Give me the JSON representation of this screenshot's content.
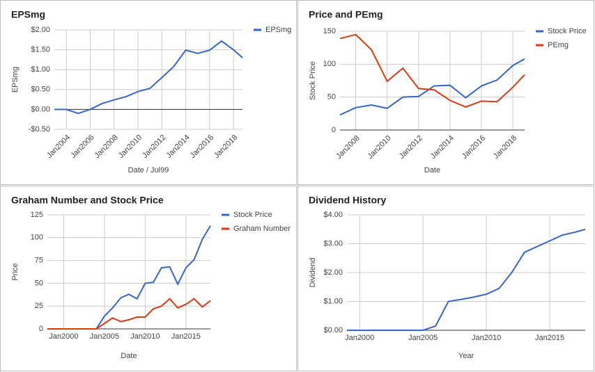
{
  "chart_data": [
    {
      "type": "line",
      "title": "EPSmg",
      "x_label": "Date / Jul99",
      "y_label": "EPSmg",
      "x": [
        2003,
        2004,
        2005,
        2006,
        2007,
        2008,
        2009,
        2010,
        2011,
        2012,
        2013,
        2014,
        2015,
        2016,
        2017,
        2018,
        2018.75
      ],
      "series": [
        {
          "name": "EPSmg",
          "color": "#3366cc",
          "values": [
            0,
            0,
            -0.1,
            0,
            0.15,
            0.24,
            0.32,
            0.45,
            0.53,
            0.8,
            1.08,
            1.49,
            1.41,
            1.49,
            1.72,
            1.5,
            1.3
          ]
        }
      ],
      "xlim": [
        2003,
        2018.75
      ],
      "ylim": [
        -0.5,
        2
      ],
      "xticks": [
        {
          "value": 2004,
          "label": "Jan2004"
        },
        {
          "value": 2006,
          "label": "Jan2006"
        },
        {
          "value": 2008,
          "label": "Jan2008"
        },
        {
          "value": 2010,
          "label": "Jan2010"
        },
        {
          "value": 2012,
          "label": "Jan2012"
        },
        {
          "value": 2014,
          "label": "Jan2014"
        },
        {
          "value": 2016,
          "label": "Jan2016"
        },
        {
          "value": 2018,
          "label": "Jan2018"
        }
      ],
      "yticks": [
        {
          "value": -0.5,
          "label": "-$0.50"
        },
        {
          "value": 0,
          "label": "$0.00"
        },
        {
          "value": 0.5,
          "label": "$0.50"
        },
        {
          "value": 1,
          "label": "$1.00"
        },
        {
          "value": 1.5,
          "label": "$1.50"
        },
        {
          "value": 2,
          "label": "$2.00"
        }
      ],
      "grid": true,
      "legend": "right"
    },
    {
      "type": "line",
      "title": "Price and PEmg",
      "x_label": "Date",
      "y_label": "Stock Price",
      "x": [
        2007,
        2008,
        2009,
        2010,
        2011,
        2012,
        2013,
        2014,
        2015,
        2016,
        2017,
        2018,
        2018.75
      ],
      "series": [
        {
          "name": "Stock Price",
          "color": "#3366cc",
          "values": [
            23,
            34,
            38,
            33,
            50,
            51,
            67,
            68,
            49,
            67,
            76,
            98,
            108
          ]
        },
        {
          "name": "PEmg",
          "color": "#dc3912",
          "values": [
            139,
            145,
            122,
            74,
            94,
            63,
            61,
            45,
            35,
            44,
            43,
            65,
            84
          ]
        }
      ],
      "xlim": [
        2007,
        2018.75
      ],
      "ylim": [
        0,
        150
      ],
      "xticks": [
        {
          "value": 2008,
          "label": "Jan2008"
        },
        {
          "value": 2010,
          "label": "Jan2010"
        },
        {
          "value": 2012,
          "label": "Jan2012"
        },
        {
          "value": 2014,
          "label": "Jan2014"
        },
        {
          "value": 2016,
          "label": "Jan2016"
        },
        {
          "value": 2018,
          "label": "Jan2018"
        }
      ],
      "yticks": [
        0,
        50,
        100,
        150
      ],
      "grid": true,
      "legend": "right"
    },
    {
      "type": "line",
      "title": "Graham Number and Stock Price",
      "x_label": "Date",
      "y_label": "Price",
      "x": [
        1998,
        1999,
        2000,
        2001,
        2002,
        2003,
        2004,
        2005,
        2006,
        2007,
        2008,
        2009,
        2010,
        2011,
        2012,
        2013,
        2014,
        2015,
        2016,
        2017,
        2018
      ],
      "series": [
        {
          "name": "Stock Price",
          "color": "#3366cc",
          "values": [
            0,
            0,
            0,
            0,
            0,
            0,
            0,
            14,
            23,
            34,
            38,
            33,
            50,
            51,
            67,
            68,
            49,
            67,
            76,
            98,
            113
          ]
        },
        {
          "name": "Graham Number",
          "color": "#dc3912",
          "values": [
            0,
            0,
            0,
            0,
            0,
            0,
            0,
            6,
            12,
            8,
            10,
            13,
            13,
            22,
            25,
            33,
            23,
            27,
            33,
            24,
            31
          ]
        }
      ],
      "xlim": [
        1998,
        2018
      ],
      "ylim": [
        0,
        125
      ],
      "xticks": [
        {
          "value": 2000,
          "label": "Jan2000"
        },
        {
          "value": 2005,
          "label": "Jan2005"
        },
        {
          "value": 2010,
          "label": "Jan2010"
        },
        {
          "value": 2015,
          "label": "Jan2015"
        }
      ],
      "yticks": [
        0,
        25,
        50,
        75,
        100,
        125
      ],
      "grid": true,
      "legend": "right"
    },
    {
      "type": "line",
      "title": "Dividend History",
      "x_label": "Year",
      "y_label": "Dividend",
      "x": [
        1999,
        2000,
        2001,
        2002,
        2003,
        2004,
        2005,
        2006,
        2007,
        2008,
        2009,
        2010,
        2011,
        2012,
        2013,
        2014,
        2015,
        2016,
        2017,
        2017.8
      ],
      "values": [
        0,
        0,
        0,
        0,
        0,
        0,
        0,
        0.15,
        1.0,
        1.07,
        1.15,
        1.25,
        1.45,
        2.0,
        2.7,
        2.9,
        3.1,
        3.3,
        3.4,
        3.5
      ],
      "color": "#3366cc",
      "xlim": [
        1999,
        2017.8
      ],
      "ylim": [
        0,
        4
      ],
      "xticks": [
        {
          "value": 2000,
          "label": "Jan2000"
        },
        {
          "value": 2005,
          "label": "Jan2005"
        },
        {
          "value": 2010,
          "label": "Jan2010"
        },
        {
          "value": 2015,
          "label": "Jan2015"
        }
      ],
      "yticks": [
        {
          "value": 0,
          "label": "$0.00"
        },
        {
          "value": 1,
          "label": "$1.00"
        },
        {
          "value": 2,
          "label": "$2.00"
        },
        {
          "value": 3,
          "label": "$3.00"
        },
        {
          "value": 4,
          "label": "$4.00"
        }
      ],
      "grid": true
    }
  ]
}
